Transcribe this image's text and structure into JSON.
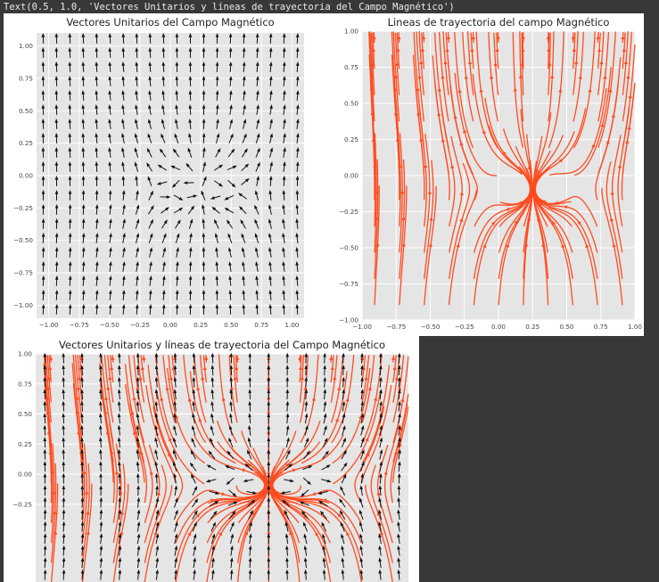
{
  "output_text": "Text(0.5, 1.0, 'Vectores Unitarios y líneas de trayectoria del Campo Magnético')",
  "chart_data": [
    {
      "type": "quiver",
      "title": "Vectores Unitarios del Campo Magnético",
      "xlim": [
        -1.1,
        1.1
      ],
      "ylim": [
        -1.1,
        1.1
      ],
      "xticks": [
        -1.0,
        -0.75,
        -0.5,
        -0.25,
        0.0,
        0.25,
        0.5,
        0.75,
        1.0
      ],
      "yticks": [
        -1.0,
        -0.75,
        -0.5,
        -0.25,
        0.0,
        0.25,
        0.5,
        0.75,
        1.0
      ],
      "xtick_labels": [
        "−1.00",
        "−0.75",
        "−0.50",
        "−0.25",
        "0.00",
        "0.25",
        "0.50",
        "0.75",
        "1.00"
      ],
      "ytick_labels": [
        "−1.00",
        "−0.75",
        "−0.50",
        "−0.25",
        "0.00",
        "0.25",
        "0.50",
        "0.75",
        "1.00"
      ],
      "grid_n": 20,
      "arrow_color": "#111111",
      "background": "#e5e5e5",
      "field_sources": [
        {
          "x": 0.2,
          "y": -0.1,
          "strength": 1
        },
        {
          "x": 0.3,
          "y": -0.1,
          "strength": -1
        }
      ]
    },
    {
      "type": "streamplot",
      "title": "Lineas de trayectoria del campo Magnético",
      "xlim": [
        -1.0,
        1.0
      ],
      "ylim": [
        -1.0,
        1.0
      ],
      "xticks": [
        -1.0,
        -0.75,
        -0.5,
        -0.25,
        0.0,
        0.25,
        0.5,
        0.75,
        1.0
      ],
      "yticks": [
        -1.0,
        -0.75,
        -0.5,
        -0.25,
        0.0,
        0.25,
        0.5,
        0.75,
        1.0
      ],
      "xtick_labels": [
        "−1.00",
        "−0.75",
        "−0.50",
        "−0.25",
        "0.00",
        "0.25",
        "0.50",
        "0.75",
        "1.00"
      ],
      "ytick_labels": [
        "−1.00",
        "−0.75",
        "−0.50",
        "−0.25",
        "0.00",
        "0.25",
        "0.50",
        "0.75",
        "1.00"
      ],
      "line_color": "#ff4b1f",
      "background": "#e5e5e5"
    },
    {
      "type": "quiver+streamplot",
      "title": "Vectores Unitarios y líneas de trayectoria del Campo Magnético",
      "xlim": [
        -1.0,
        1.0
      ],
      "ylim": [
        -1.0,
        1.0
      ],
      "yticks": [
        0.0,
        0.25,
        0.5,
        0.75,
        1.0,
        -0.25
      ],
      "ytick_labels": [
        "0.00",
        "0.25",
        "0.50",
        "0.75",
        "1.00",
        "−0.25"
      ],
      "arrow_color": "#111111",
      "line_color": "#ff4b1f",
      "background": "#e5e5e5"
    }
  ]
}
